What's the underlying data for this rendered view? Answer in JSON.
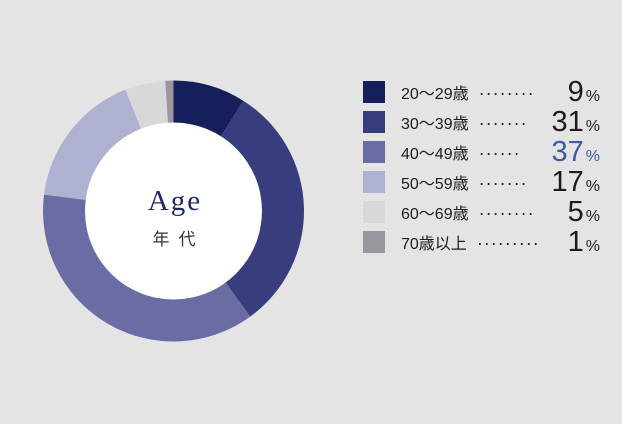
{
  "page": {
    "background_color": "#e4e4e5"
  },
  "chart_data": {
    "type": "pie",
    "variant": "donut",
    "title": "Age",
    "subtitle": "年代",
    "categories": [
      "20〜29歳",
      "30〜39歳",
      "40〜49歳",
      "50〜59歳",
      "60〜69歳",
      "70歳以上"
    ],
    "values": [
      9,
      31,
      37,
      17,
      5,
      1
    ],
    "unit": "%",
    "colors": [
      "#161f5b",
      "#383d7d",
      "#6a6da4",
      "#aeb1cf",
      "#d8d8da",
      "#97979d"
    ],
    "start_angle_deg": -90,
    "direction": "clockwise",
    "legend_position": "right",
    "legend_leader_dots": [
      8,
      7,
      6,
      7,
      8,
      9
    ],
    "highlight_index": 2,
    "highlight_value_color": "#3b5aa6",
    "value_color": "#1c1c1c",
    "title_color": "#1f2865",
    "subtitle_color": "#333333",
    "hole_color": "#ffffff"
  }
}
